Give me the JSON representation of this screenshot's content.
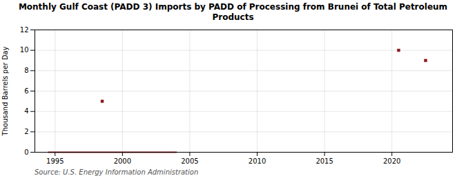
{
  "chart_data": {
    "type": "scatter",
    "title": "Monthly Gulf Coast (PADD 3) Imports by PADD of Processing from Brunei of Total Petroleum\nProducts",
    "ylabel": "Thousand Barrels per Day",
    "source": "Source: U.S. Energy Information Administration",
    "series": [
      {
        "type": "scatter",
        "color": "#8b1a1a",
        "marker": "square",
        "x": [
          1998.5,
          2020.5,
          2022.5
        ],
        "values": [
          5.0,
          10.0,
          9.0
        ]
      },
      {
        "type": "line",
        "color": "#8b1a1a",
        "line_style": "solid",
        "x": [
          1994.5,
          2004.0
        ],
        "values": [
          0.0,
          0.0
        ]
      }
    ],
    "xlim": [
      1993.5,
      2024.5
    ],
    "ylim": [
      0,
      12
    ],
    "xticks": [
      1995,
      2000,
      2005,
      2010,
      2015,
      2020
    ],
    "yticks": [
      0,
      2,
      4,
      6,
      8,
      10,
      12
    ],
    "grid": true
  }
}
